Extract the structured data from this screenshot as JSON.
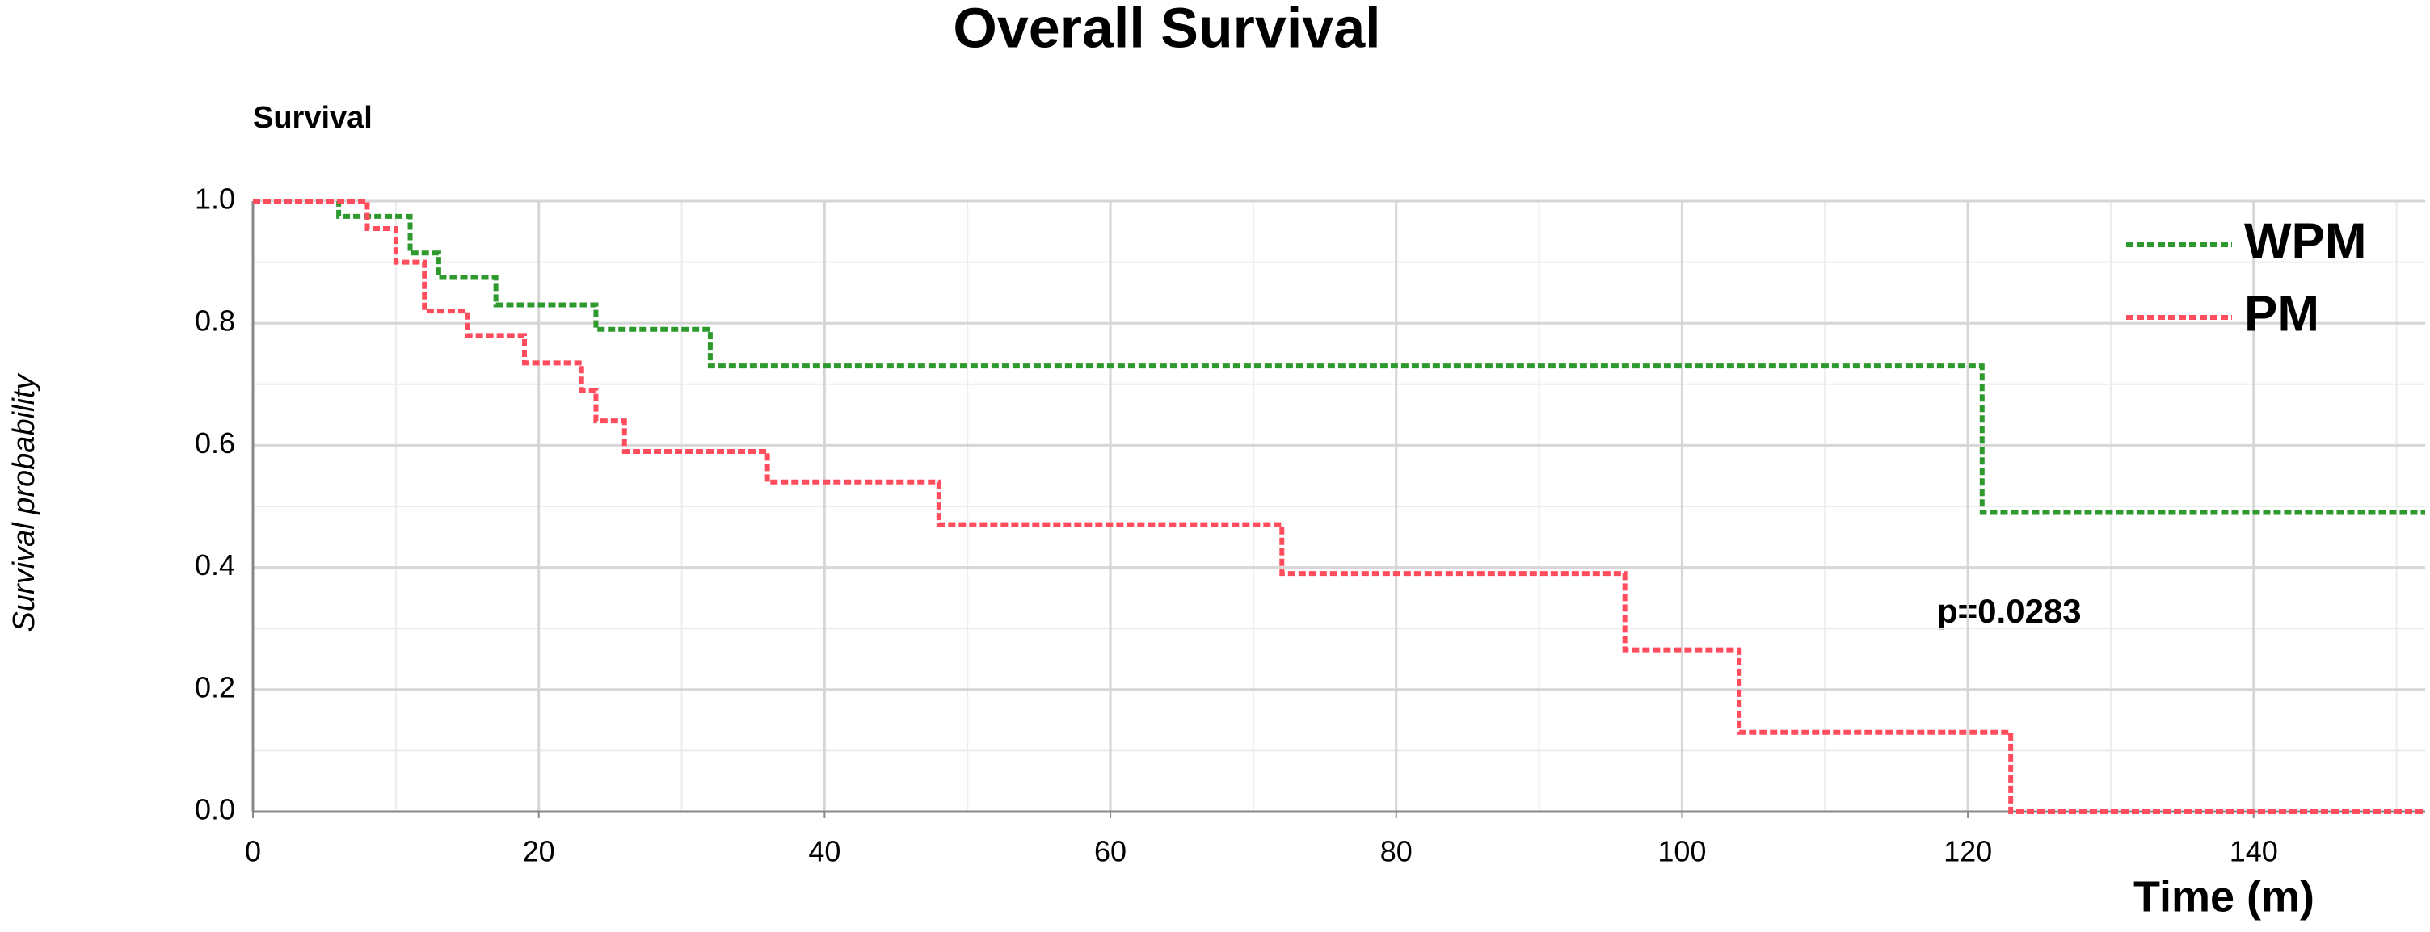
{
  "chart_data": {
    "type": "step",
    "title": "Overall Survival",
    "y_caption": "Survival",
    "y_label": "Survival probability",
    "x_label": "Time (m)",
    "annotation": "p=0.0283",
    "series": [
      {
        "name": "WPM",
        "color": "#2e9a2e",
        "x": [
          0,
          6,
          11,
          13,
          17,
          24,
          32,
          121,
          152
        ],
        "values": [
          1.0,
          0.975,
          0.915,
          0.875,
          0.83,
          0.79,
          0.73,
          0.49,
          0.49
        ]
      },
      {
        "name": "PM",
        "color": "#ff4d5e",
        "x": [
          0,
          8,
          10,
          12,
          15,
          19,
          23,
          24,
          26,
          36,
          48,
          72,
          96,
          104,
          123,
          152
        ],
        "values": [
          1.0,
          0.955,
          0.9,
          0.82,
          0.78,
          0.735,
          0.69,
          0.64,
          0.59,
          0.54,
          0.47,
          0.39,
          0.265,
          0.13,
          0.0,
          0.0
        ]
      }
    ],
    "xlim": [
      0,
      152
    ],
    "ylim": [
      0,
      1
    ],
    "xticks": [
      0,
      20,
      40,
      60,
      80,
      100,
      120,
      140
    ],
    "yticks": [
      {
        "value": 0,
        "label": "0.0"
      },
      0.2,
      0.4,
      0.6,
      0.8,
      {
        "value": 1,
        "label": "1.0"
      }
    ],
    "minor_xticks": [
      10,
      30,
      50,
      70,
      90,
      110,
      130,
      150
    ],
    "minor_yticks": [
      0.1,
      0.3,
      0.5,
      0.7,
      0.9
    ],
    "grid": true,
    "legend": "upper right"
  }
}
